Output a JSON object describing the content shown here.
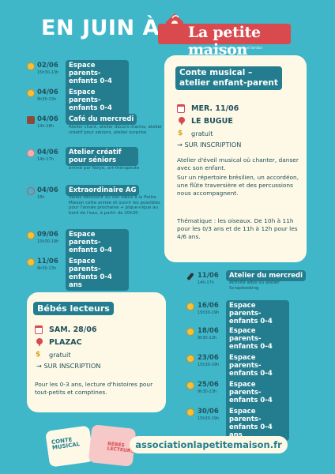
{
  "header": {
    "title": "EN JUIN À",
    "logo_name": "La petite maison",
    "logo_sub": "association de soutien au lien social et familial"
  },
  "left_events": [
    {
      "date": "02/06",
      "hours": "15h30-13h",
      "title": "Espace parents-enfants 0-4 ans",
      "desc": "",
      "icon": "smiley-icon"
    },
    {
      "date": "04/06",
      "hours": "9h30-13h",
      "title": "Espace parents-enfants 0-4 ans",
      "desc": "",
      "icon": "smiley-icon"
    },
    {
      "date": "04/06",
      "hours": "14h-18h",
      "title": "Café du mercredi",
      "desc": "Atelier chant, atelier décors marins, atelier créatif pour séniors, atelier surprise",
      "icon": "coffee-cup-icon"
    },
    {
      "date": "04/06",
      "hours": "14h-17h",
      "title": "Atelier créatif pour séniors",
      "desc": "animé par Nolye, art-thérapeute",
      "icon": "senior-face-icon"
    },
    {
      "date": "04/06",
      "hours": "18h",
      "title": "Extraordinaire AG",
      "desc": "Venez découvrir ou vos vœux à la Petite Maison cette année et ouvrir les possibles pour l'année prochaine + pique-nique au bord de l'eau, à partir de 20h30",
      "icon": "ring-icon"
    },
    {
      "date": "09/06",
      "hours": "15h30-19h",
      "title": "Espace parents-enfants 0-4 ans",
      "desc": "",
      "icon": "smiley-icon"
    },
    {
      "date": "11/06",
      "hours": "9h30-13h",
      "title": "Espace parents-enfants 0-4 ans",
      "desc": "",
      "icon": "smiley-icon"
    }
  ],
  "conte_card": {
    "title_line1": "Conte musical –",
    "title_line2": "atelier enfant-parent",
    "date": "MER. 11/06",
    "place": "LE BUGUE",
    "price": "gratuit",
    "signup": "→ SUR INSCRIPTION",
    "text1": "Atelier d'éveil musical où chanter, danser avec son enfant.",
    "text2": "Sur un répertoire brésilien, un accordéon, une flûte traversière et des percussions nous accompagnent.",
    "theme": "Thématique : les oiseaux. De 10h à 11h pour les 0/3 ans et de 11h à 12h pour les 4/6 ans."
  },
  "right_events": [
    {
      "date": "11/06",
      "hours": "14h-17h",
      "title": "Atelier du mercredi",
      "desc": "Activité ados ou atelier Scrapbooking",
      "icon": "microphone-icon"
    },
    {
      "date": "16/06",
      "hours": "15h30-19h",
      "title": "Espace parents-enfants 0-4 ans",
      "desc": "",
      "icon": "smiley-icon"
    },
    {
      "date": "18/06",
      "hours": "9h30-13h",
      "title": "Espace parents-enfants 0-4 ans",
      "desc": "",
      "icon": "smiley-icon"
    },
    {
      "date": "23/06",
      "hours": "15h30-19h",
      "title": "Espace parents-enfants 0-4 ans",
      "desc": "",
      "icon": "smiley-icon"
    },
    {
      "date": "25/06",
      "hours": "9h30-13h",
      "title": "Espace parents-enfants 0-4 ans",
      "desc": "",
      "icon": "smiley-icon"
    },
    {
      "date": "30/06",
      "hours": "15h30-19h",
      "title": "Espace parents-enfants 0-4 ans",
      "desc": "",
      "icon": "smiley-icon"
    }
  ],
  "bebes_card": {
    "title": "Bébés lecteurs",
    "date": "SAM. 28/06",
    "place": "PLAZAC",
    "price": "gratuit",
    "signup": "→ SUR INSCRIPTION",
    "text": "Pour les 0-3 ans, lecture d'histoires pour tout-petits et comptines."
  },
  "footer": {
    "thumb1": "CONTE MUSICAL",
    "thumb2": "BÉBÉS LECTEURS",
    "url": "associationlapetitemaison.fr"
  },
  "colors": {
    "background": "#3fb7c9",
    "pill": "#237d8e",
    "card": "#fdf9e6",
    "accent_red": "#d94a4f",
    "text_dark": "#22505c"
  }
}
